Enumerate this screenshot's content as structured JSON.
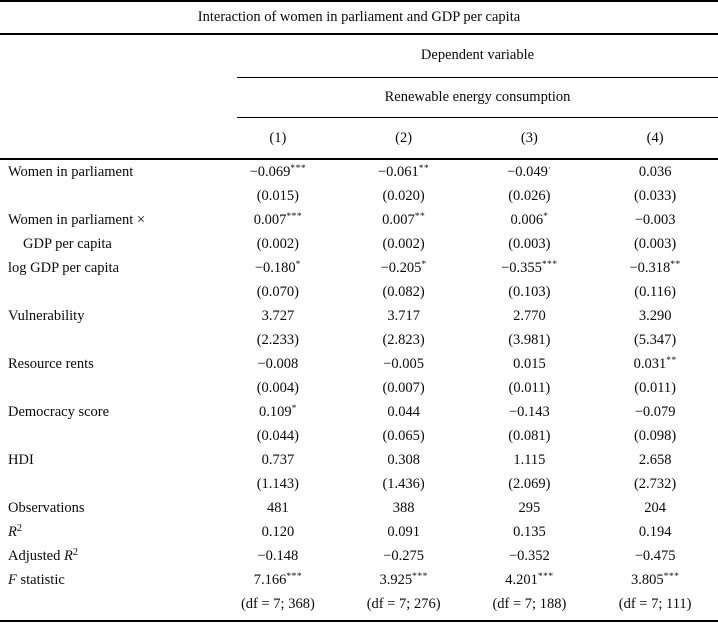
{
  "table": {
    "title": "Interaction of women in parliament and GDP per capita",
    "dependent_variable_label": "Dependent variable",
    "dependent_variable": "Renewable energy consumption",
    "column_headers": [
      "(1)",
      "(2)",
      "(3)",
      "(4)"
    ],
    "rows": [
      {
        "label": {
          "pre": "Women in parliament"
        },
        "cells": [
          {
            "v": "−0.069",
            "m": "***"
          },
          {
            "v": "−0.061",
            "m": "**"
          },
          {
            "v": "−0.049",
            "m": "·"
          },
          {
            "v": "0.036",
            "m": ""
          }
        ]
      },
      {
        "label": {},
        "cells": [
          {
            "v": "(0.015)",
            "m": ""
          },
          {
            "v": "(0.020)",
            "m": ""
          },
          {
            "v": "(0.026)",
            "m": ""
          },
          {
            "v": "(0.033)",
            "m": ""
          }
        ]
      },
      {
        "label": {
          "pre": "Women in parliament ×"
        },
        "cells": [
          {
            "v": "0.007",
            "m": "***"
          },
          {
            "v": "0.007",
            "m": "**"
          },
          {
            "v": "0.006",
            "m": "*"
          },
          {
            "v": "−0.003",
            "m": ""
          }
        ]
      },
      {
        "label": {
          "pre": "GDP per capita",
          "indent": true
        },
        "cells": [
          {
            "v": "(0.002)",
            "m": ""
          },
          {
            "v": "(0.002)",
            "m": ""
          },
          {
            "v": "(0.003)",
            "m": ""
          },
          {
            "v": "(0.003)",
            "m": ""
          }
        ]
      },
      {
        "label": {
          "pre": "log GDP per capita"
        },
        "cells": [
          {
            "v": "−0.180",
            "m": "*"
          },
          {
            "v": "−0.205",
            "m": "*"
          },
          {
            "v": "−0.355",
            "m": "***"
          },
          {
            "v": "−0.318",
            "m": "**"
          }
        ]
      },
      {
        "label": {},
        "cells": [
          {
            "v": "(0.070)",
            "m": ""
          },
          {
            "v": "(0.082)",
            "m": ""
          },
          {
            "v": "(0.103)",
            "m": ""
          },
          {
            "v": "(0.116)",
            "m": ""
          }
        ]
      },
      {
        "label": {
          "pre": "Vulnerability"
        },
        "cells": [
          {
            "v": "3.727",
            "m": ""
          },
          {
            "v": "3.717",
            "m": ""
          },
          {
            "v": "2.770",
            "m": ""
          },
          {
            "v": "3.290",
            "m": ""
          }
        ]
      },
      {
        "label": {},
        "cells": [
          {
            "v": "(2.233)",
            "m": ""
          },
          {
            "v": "(2.823)",
            "m": ""
          },
          {
            "v": "(3.981)",
            "m": ""
          },
          {
            "v": "(5.347)",
            "m": ""
          }
        ]
      },
      {
        "label": {
          "pre": "Resource rents"
        },
        "cells": [
          {
            "v": "−0.008",
            "m": ""
          },
          {
            "v": "−0.005",
            "m": ""
          },
          {
            "v": "0.015",
            "m": ""
          },
          {
            "v": "0.031",
            "m": "**"
          }
        ]
      },
      {
        "label": {},
        "cells": [
          {
            "v": "(0.004)",
            "m": ""
          },
          {
            "v": "(0.007)",
            "m": ""
          },
          {
            "v": "(0.011)",
            "m": ""
          },
          {
            "v": "(0.011)",
            "m": ""
          }
        ]
      },
      {
        "label": {
          "pre": "Democracy score"
        },
        "cells": [
          {
            "v": "0.109",
            "m": "*"
          },
          {
            "v": "0.044",
            "m": ""
          },
          {
            "v": "−0.143",
            "m": ""
          },
          {
            "v": "−0.079",
            "m": ""
          }
        ]
      },
      {
        "label": {},
        "cells": [
          {
            "v": "(0.044)",
            "m": ""
          },
          {
            "v": "(0.065)",
            "m": ""
          },
          {
            "v": "(0.081)",
            "m": ""
          },
          {
            "v": "(0.098)",
            "m": ""
          }
        ]
      },
      {
        "label": {
          "pre": "HDI"
        },
        "cells": [
          {
            "v": "0.737",
            "m": ""
          },
          {
            "v": "0.308",
            "m": ""
          },
          {
            "v": "1.115",
            "m": ""
          },
          {
            "v": "2.658",
            "m": ""
          }
        ]
      },
      {
        "label": {},
        "cells": [
          {
            "v": "(1.143)",
            "m": ""
          },
          {
            "v": "(1.436)",
            "m": ""
          },
          {
            "v": "(2.069)",
            "m": ""
          },
          {
            "v": "(2.732)",
            "m": ""
          }
        ]
      },
      {
        "label": {
          "pre": "Observations"
        },
        "cells": [
          {
            "v": "481",
            "m": ""
          },
          {
            "v": "388",
            "m": ""
          },
          {
            "v": "295",
            "m": ""
          },
          {
            "v": "204",
            "m": ""
          }
        ]
      },
      {
        "label": {
          "it": "R",
          "sup": "2"
        },
        "cells": [
          {
            "v": "0.120",
            "m": ""
          },
          {
            "v": "0.091",
            "m": ""
          },
          {
            "v": "0.135",
            "m": ""
          },
          {
            "v": "0.194",
            "m": ""
          }
        ]
      },
      {
        "label": {
          "pre": "Adjusted ",
          "it": "R",
          "sup": "2"
        },
        "cells": [
          {
            "v": "−0.148",
            "m": ""
          },
          {
            "v": "−0.275",
            "m": ""
          },
          {
            "v": "−0.352",
            "m": ""
          },
          {
            "v": "−0.475",
            "m": ""
          }
        ]
      },
      {
        "label": {
          "it": "F",
          "post": " statistic"
        },
        "cells": [
          {
            "v": "7.166",
            "m": "***"
          },
          {
            "v": "3.925",
            "m": "***"
          },
          {
            "v": "4.201",
            "m": "***"
          },
          {
            "v": "3.805",
            "m": "***"
          }
        ]
      },
      {
        "label": {},
        "cells": [
          {
            "v": "(df = 7; 368)",
            "m": ""
          },
          {
            "v": "(df = 7; 276)",
            "m": ""
          },
          {
            "v": "(df = 7; 188)",
            "m": ""
          },
          {
            "v": "(df = 7; 111)",
            "m": ""
          }
        ]
      }
    ]
  }
}
